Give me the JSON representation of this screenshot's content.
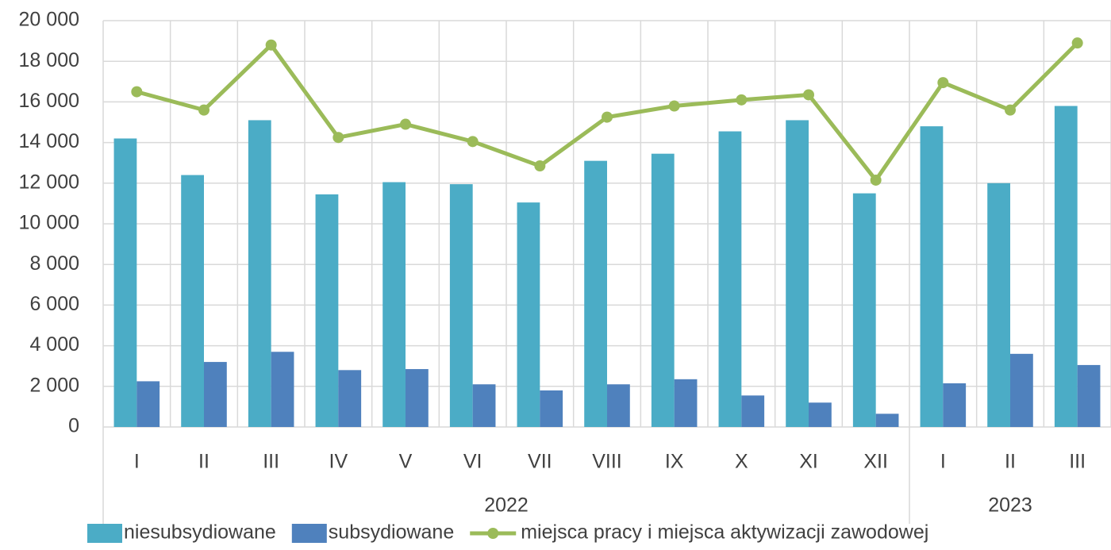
{
  "chart_data": {
    "type": "bar-line",
    "categories": [
      "I",
      "II",
      "III",
      "IV",
      "V",
      "VI",
      "VII",
      "VIII",
      "IX",
      "X",
      "XI",
      "XII",
      "I",
      "II",
      "III"
    ],
    "groups": [
      {
        "label": "2022",
        "count": 12
      },
      {
        "label": "2023",
        "count": 3
      }
    ],
    "series": [
      {
        "name": "niesubsydiowane",
        "type": "bar",
        "color": "#4bacc6",
        "values": [
          14200,
          12400,
          15100,
          11450,
          12050,
          11950,
          11050,
          13100,
          13450,
          14550,
          15100,
          11500,
          14800,
          12000,
          15800
        ]
      },
      {
        "name": "subsydiowane",
        "type": "bar",
        "color": "#4f81bd",
        "values": [
          2250,
          3200,
          3700,
          2800,
          2850,
          2100,
          1800,
          2100,
          2350,
          1550,
          1200,
          650,
          2150,
          3600,
          3050
        ]
      },
      {
        "name": "miejsca pracy i miejsca aktywizacji zawodowej",
        "type": "line",
        "color": "#9bbb59",
        "values": [
          16500,
          15600,
          18800,
          14250,
          14900,
          14050,
          12850,
          15250,
          15800,
          16100,
          16350,
          12150,
          16950,
          15600,
          18900
        ]
      }
    ],
    "ylim": [
      0,
      20000
    ],
    "yticks": [
      0,
      {
        "value": 2000,
        "label": "2 000"
      },
      {
        "value": 4000,
        "label": "4 000"
      },
      {
        "value": 6000,
        "label": "6 000"
      },
      {
        "value": 8000,
        "label": "8 000"
      },
      {
        "value": 10000,
        "label": "10 000"
      },
      {
        "value": 12000,
        "label": "12 000"
      },
      {
        "value": 14000,
        "label": "14 000"
      },
      {
        "value": 16000,
        "label": "16 000"
      },
      {
        "value": 18000,
        "label": "18 000"
      },
      {
        "value": 20000,
        "label": "20 000"
      }
    ],
    "grid": true,
    "legend": "bottom"
  }
}
